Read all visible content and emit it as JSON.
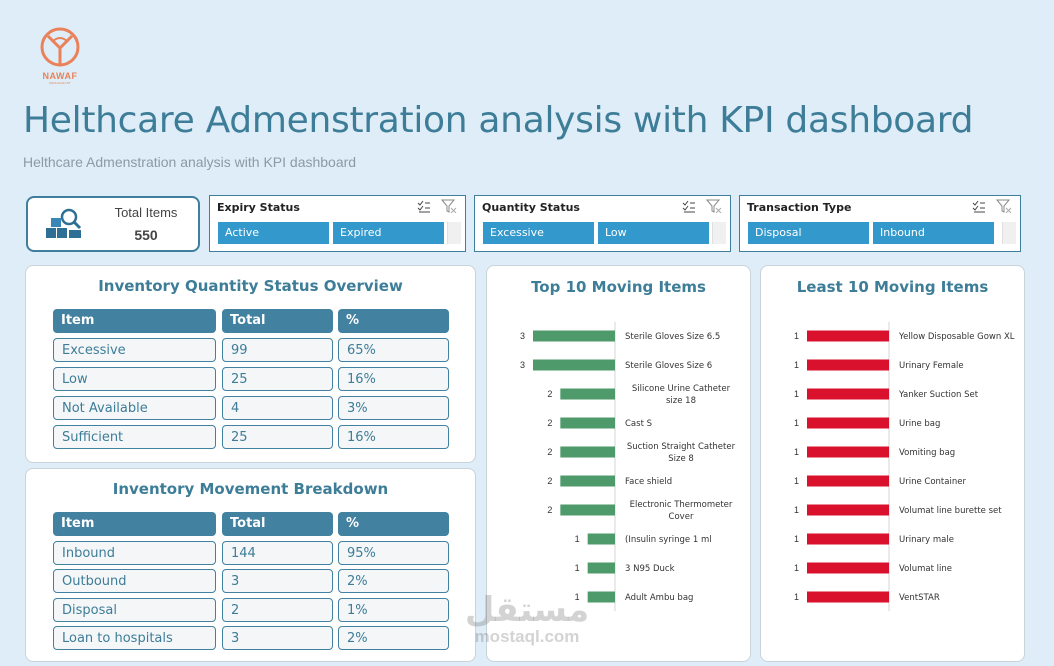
{
  "logo": {
    "name": "NAWAF",
    "tagline": "DATA ANALYST"
  },
  "header": {
    "title": "Helthcare Admenstration analysis with KPI dashboard",
    "subtitle": "Helthcare Admenstration analysis with KPI dashboard"
  },
  "kpi": {
    "label": "Total Items",
    "value": "550",
    "icon": "inventory-search-icon"
  },
  "slicers": [
    {
      "title": "Expiry Status",
      "options": [
        "Active",
        "Expired"
      ]
    },
    {
      "title": "Quantity Status",
      "options": [
        "Excessive",
        "Low"
      ]
    },
    {
      "title": "Transaction Type",
      "options": [
        "Disposal",
        "Inbound"
      ]
    }
  ],
  "quantity_panel": {
    "title": "Inventory Quantity Status Overview",
    "headers": [
      "Item",
      "Total",
      "%"
    ],
    "rows": [
      [
        "Excessive",
        "99",
        "65%"
      ],
      [
        "Low",
        "25",
        "16%"
      ],
      [
        "Not Available",
        "4",
        "3%"
      ],
      [
        "Sufficient",
        "25",
        "16%"
      ]
    ]
  },
  "movement_panel": {
    "title": "Inventory Movement Breakdown",
    "headers": [
      "Item",
      "Total",
      "%"
    ],
    "rows": [
      [
        "Inbound",
        "144",
        "95%"
      ],
      [
        "Outbound",
        "3",
        "2%"
      ],
      [
        "Disposal",
        "2",
        "1%"
      ],
      [
        "Loan to hospitals",
        "3",
        "2%"
      ]
    ]
  },
  "chart_data": [
    {
      "type": "bar",
      "orientation": "horizontal",
      "title": "Top 10 Moving Items",
      "color": "#4e9a6a",
      "xlim": [
        0,
        3
      ],
      "categories": [
        "Sterile Gloves Size 6.5",
        "Sterile Gloves Size 6",
        "Silicone Urine Catheter size 18",
        "Cast S",
        "Suction Straight Catheter Size 8",
        "Face shield",
        "Electronic Thermometer Cover",
        "(Insulin syringe 1 ml",
        "3 N95    Duck",
        "Adult Ambu bag"
      ],
      "values": [
        3,
        3,
        2,
        2,
        2,
        2,
        2,
        1,
        1,
        1
      ]
    },
    {
      "type": "bar",
      "orientation": "horizontal",
      "title": "Least 10 Moving Items",
      "color": "#d9112c",
      "xlim": [
        0,
        1
      ],
      "categories": [
        "Yellow Disposable Gown XL",
        "Urinary Female",
        "Yanker Suction Set",
        "Urine bag",
        "Vomiting bag",
        "Urine Container",
        "Volumat line burette set",
        "Urinary male",
        "Volumat line",
        "VentSTAR"
      ],
      "values": [
        1,
        1,
        1,
        1,
        1,
        1,
        1,
        1,
        1,
        1
      ]
    }
  ],
  "watermark": {
    "arabic": "مستقل",
    "latin": "mostaql.com"
  }
}
